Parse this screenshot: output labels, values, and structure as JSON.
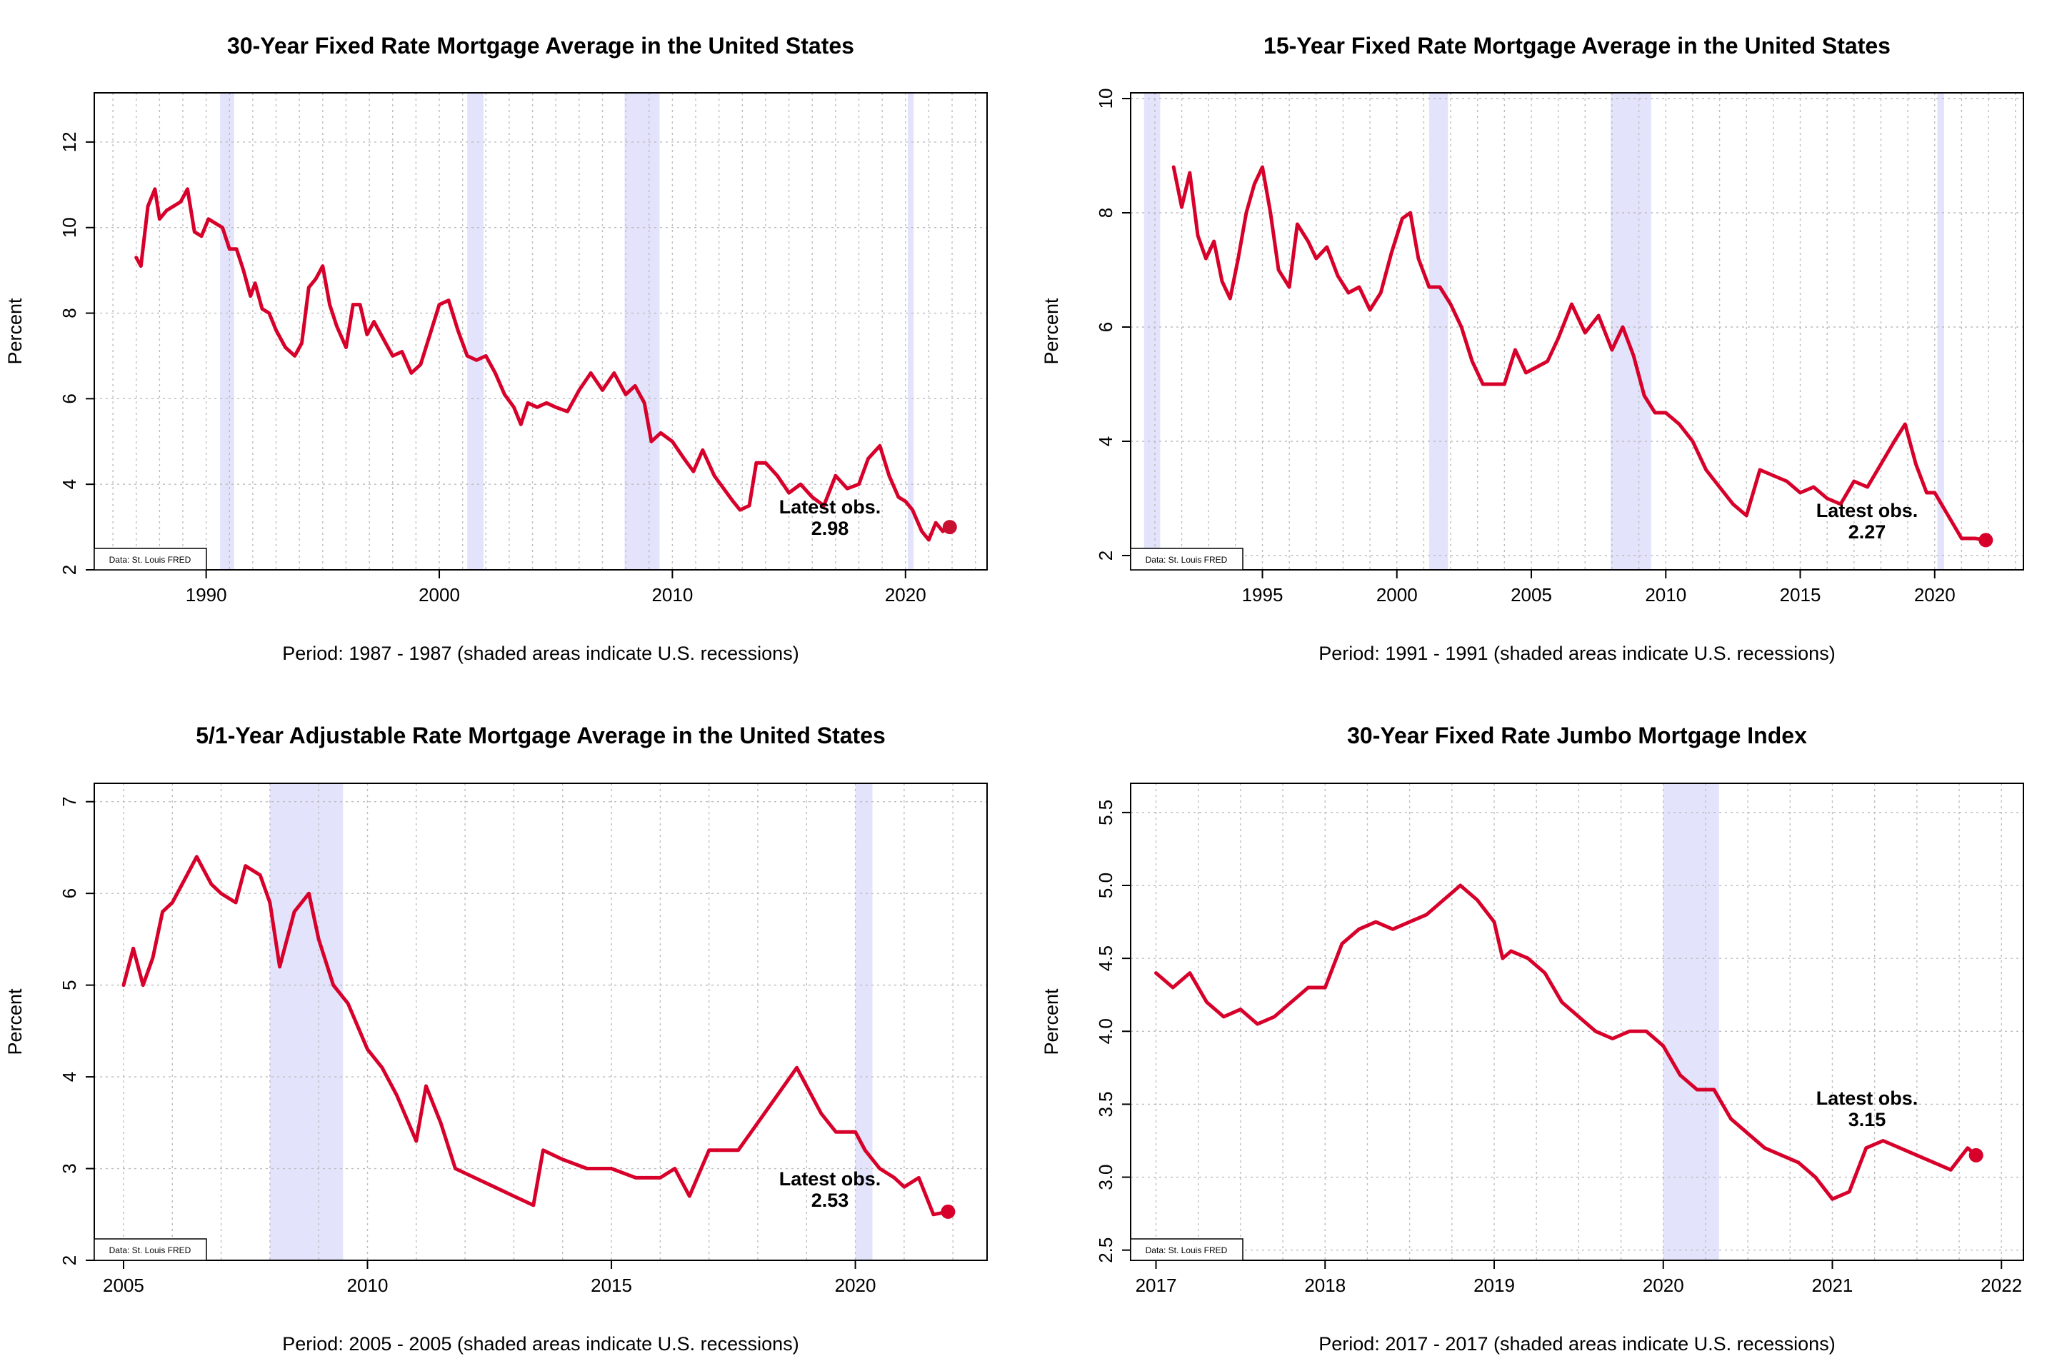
{
  "chart_data": [
    {
      "type": "line",
      "title": "30-Year Fixed Rate Mortgage Average in the United States",
      "xlabel": "Period: 1987 - 1987 (shaded areas indicate U.S. recessions)",
      "ylabel": "Percent",
      "xlim": [
        1985.2,
        2023.5
      ],
      "ylim": [
        2,
        13.15
      ],
      "xticks": [
        1990,
        2000,
        2010,
        2020
      ],
      "xtick_labels": [
        "1990",
        "2000",
        "2010",
        "2020"
      ],
      "yticks": [
        2,
        4,
        6,
        8,
        10,
        12
      ],
      "ytick_labels": [
        "2",
        "4",
        "6",
        "8",
        "10",
        "12"
      ],
      "grid": true,
      "recessions": [
        [
          1990.6,
          1991.2
        ],
        [
          2001.2,
          2001.9
        ],
        [
          2007.95,
          2009.45
        ],
        [
          2020.1,
          2020.35
        ]
      ],
      "series": [
        {
          "color": "#d7002a",
          "x": [
            1987.0,
            1987.2,
            1987.5,
            1987.8,
            1988.0,
            1988.3,
            1988.6,
            1988.9,
            1989.2,
            1989.5,
            1989.8,
            1990.1,
            1990.4,
            1990.7,
            1991.0,
            1991.3,
            1991.6,
            1991.9,
            1992.1,
            1992.4,
            1992.7,
            1993.0,
            1993.4,
            1993.8,
            1994.1,
            1994.4,
            1994.7,
            1995.0,
            1995.3,
            1995.6,
            1996.0,
            1996.3,
            1996.6,
            1996.9,
            1997.2,
            1997.6,
            1998.0,
            1998.4,
            1998.8,
            1999.2,
            1999.6,
            2000.0,
            2000.4,
            2000.8,
            2001.2,
            2001.6,
            2002.0,
            2002.4,
            2002.8,
            2003.2,
            2003.5,
            2003.8,
            2004.2,
            2004.6,
            2005.0,
            2005.5,
            2006.0,
            2006.5,
            2007.0,
            2007.5,
            2008.0,
            2008.4,
            2008.8,
            2009.1,
            2009.5,
            2010.0,
            2010.5,
            2010.9,
            2011.3,
            2011.8,
            2012.2,
            2012.6,
            2012.9,
            2013.3,
            2013.6,
            2014.0,
            2014.5,
            2015.0,
            2015.5,
            2016.0,
            2016.5,
            2017.0,
            2017.5,
            2018.0,
            2018.4,
            2018.9,
            2019.3,
            2019.7,
            2020.0,
            2020.3,
            2020.7,
            2021.0,
            2021.3,
            2021.6,
            2021.9
          ],
          "values": [
            9.3,
            9.1,
            10.5,
            10.9,
            10.2,
            10.4,
            10.5,
            10.6,
            10.9,
            9.9,
            9.8,
            10.2,
            10.1,
            10.0,
            9.5,
            9.5,
            9.0,
            8.4,
            8.7,
            8.1,
            8.0,
            7.6,
            7.2,
            7.0,
            7.3,
            8.6,
            8.8,
            9.1,
            8.2,
            7.7,
            7.2,
            8.2,
            8.2,
            7.5,
            7.8,
            7.4,
            7.0,
            7.1,
            6.6,
            6.8,
            7.5,
            8.2,
            8.3,
            7.6,
            7.0,
            6.9,
            7.0,
            6.6,
            6.1,
            5.8,
            5.4,
            5.9,
            5.8,
            5.9,
            5.8,
            5.7,
            6.2,
            6.6,
            6.2,
            6.6,
            6.1,
            6.3,
            5.9,
            5.0,
            5.2,
            5.0,
            4.6,
            4.3,
            4.8,
            4.2,
            3.9,
            3.6,
            3.4,
            3.5,
            4.5,
            4.5,
            4.2,
            3.8,
            4.0,
            3.7,
            3.5,
            4.2,
            3.9,
            4.0,
            4.6,
            4.9,
            4.2,
            3.7,
            3.6,
            3.4,
            2.9,
            2.7,
            3.1,
            2.9,
            3.0
          ],
          "latest_label": "Latest obs.",
          "latest_value": "2.98"
        }
      ],
      "source": "Data: St. Louis FRED"
    },
    {
      "type": "line",
      "title": "15-Year Fixed Rate Mortgage Average in the United States",
      "xlabel": "Period: 1991 - 1991 (shaded areas indicate U.S. recessions)",
      "ylabel": "Percent",
      "xlim": [
        1990.1,
        2023.3
      ],
      "ylim": [
        1.75,
        10.1
      ],
      "xticks": [
        1995,
        2000,
        2005,
        2010,
        2015,
        2020
      ],
      "xtick_labels": [
        "1995",
        "2000",
        "2005",
        "2010",
        "2015",
        "2020"
      ],
      "yticks": [
        2,
        4,
        6,
        8,
        10
      ],
      "ytick_labels": [
        "2",
        "4",
        "6",
        "8",
        "10"
      ],
      "grid": true,
      "recessions": [
        [
          1990.6,
          1991.2
        ],
        [
          2001.2,
          2001.9
        ],
        [
          2007.95,
          2009.45
        ],
        [
          2020.1,
          2020.35
        ]
      ],
      "series": [
        {
          "color": "#d7002a",
          "x": [
            1991.7,
            1992.0,
            1992.3,
            1992.6,
            1992.9,
            1993.2,
            1993.5,
            1993.8,
            1994.1,
            1994.4,
            1994.7,
            1995.0,
            1995.3,
            1995.6,
            1996.0,
            1996.3,
            1996.7,
            1997.0,
            1997.4,
            1997.8,
            1998.2,
            1998.6,
            1999.0,
            1999.4,
            1999.8,
            2000.2,
            2000.5,
            2000.8,
            2001.2,
            2001.6,
            2002.0,
            2002.4,
            2002.8,
            2003.2,
            2003.6,
            2004.0,
            2004.4,
            2004.8,
            2005.2,
            2005.6,
            2006.0,
            2006.5,
            2007.0,
            2007.5,
            2008.0,
            2008.4,
            2008.8,
            2009.2,
            2009.6,
            2010.0,
            2010.5,
            2011.0,
            2011.5,
            2012.0,
            2012.5,
            2013.0,
            2013.5,
            2014.0,
            2014.5,
            2015.0,
            2015.5,
            2016.0,
            2016.5,
            2017.0,
            2017.5,
            2018.0,
            2018.5,
            2018.9,
            2019.3,
            2019.7,
            2020.0,
            2020.5,
            2021.0,
            2021.5,
            2021.9
          ],
          "values": [
            8.8,
            8.1,
            8.7,
            7.6,
            7.2,
            7.5,
            6.8,
            6.5,
            7.2,
            8.0,
            8.5,
            8.8,
            8.0,
            7.0,
            6.7,
            7.8,
            7.5,
            7.2,
            7.4,
            6.9,
            6.6,
            6.7,
            6.3,
            6.6,
            7.3,
            7.9,
            8.0,
            7.2,
            6.7,
            6.7,
            6.4,
            6.0,
            5.4,
            5.0,
            5.0,
            5.0,
            5.6,
            5.2,
            5.3,
            5.4,
            5.8,
            6.4,
            5.9,
            6.2,
            5.6,
            6.0,
            5.5,
            4.8,
            4.5,
            4.5,
            4.3,
            4.0,
            3.5,
            3.2,
            2.9,
            2.7,
            3.5,
            3.4,
            3.3,
            3.1,
            3.2,
            3.0,
            2.9,
            3.3,
            3.2,
            3.6,
            4.0,
            4.3,
            3.6,
            3.1,
            3.1,
            2.7,
            2.3,
            2.3,
            2.27
          ],
          "latest_label": "Latest obs.",
          "latest_value": "2.27"
        }
      ],
      "source": "Data: St. Louis FRED"
    },
    {
      "type": "line",
      "title": "5/1-Year Adjustable Rate Mortgage Average in the United States",
      "xlabel": "Period: 2005 - 2005 (shaded areas indicate U.S. recessions)",
      "ylabel": "Percent",
      "xlim": [
        2004.4,
        2022.7
      ],
      "ylim": [
        2,
        7.2
      ],
      "xticks": [
        2005,
        2010,
        2015,
        2020
      ],
      "xtick_labels": [
        "2005",
        "2010",
        "2015",
        "2020"
      ],
      "yticks": [
        2,
        3,
        4,
        5,
        6,
        7
      ],
      "ytick_labels": [
        "2",
        "3",
        "4",
        "5",
        "6",
        "7"
      ],
      "grid": true,
      "recessions": [
        [
          2008.0,
          2009.5
        ],
        [
          2020.0,
          2020.35
        ]
      ],
      "series": [
        {
          "color": "#d7002a",
          "x": [
            2005.0,
            2005.2,
            2005.4,
            2005.6,
            2005.8,
            2006.0,
            2006.2,
            2006.5,
            2006.8,
            2007.0,
            2007.3,
            2007.5,
            2007.8,
            2008.0,
            2008.2,
            2008.5,
            2008.8,
            2009.0,
            2009.3,
            2009.6,
            2010.0,
            2010.3,
            2010.6,
            2011.0,
            2011.2,
            2011.5,
            2011.8,
            2012.2,
            2012.6,
            2013.0,
            2013.4,
            2013.6,
            2014.0,
            2014.5,
            2015.0,
            2015.5,
            2016.0,
            2016.3,
            2016.6,
            2017.0,
            2017.3,
            2017.6,
            2018.0,
            2018.4,
            2018.8,
            2019.0,
            2019.3,
            2019.6,
            2020.0,
            2020.2,
            2020.5,
            2020.8,
            2021.0,
            2021.3,
            2021.6,
            2021.9
          ],
          "values": [
            5.0,
            5.4,
            5.0,
            5.3,
            5.8,
            5.9,
            6.1,
            6.4,
            6.1,
            6.0,
            5.9,
            6.3,
            6.2,
            5.9,
            5.2,
            5.8,
            6.0,
            5.5,
            5.0,
            4.8,
            4.3,
            4.1,
            3.8,
            3.3,
            3.9,
            3.5,
            3.0,
            2.9,
            2.8,
            2.7,
            2.6,
            3.2,
            3.1,
            3.0,
            3.0,
            2.9,
            2.9,
            3.0,
            2.7,
            3.2,
            3.2,
            3.2,
            3.5,
            3.8,
            4.1,
            3.9,
            3.6,
            3.4,
            3.4,
            3.2,
            3.0,
            2.9,
            2.8,
            2.9,
            2.5,
            2.53
          ],
          "latest_label": "Latest obs.",
          "latest_value": "2.53"
        }
      ],
      "source": "Data: St. Louis FRED"
    },
    {
      "type": "line",
      "title": "30-Year Fixed Rate Jumbo Mortgage Index",
      "xlabel": "Period: 2017 - 2017 (shaded areas indicate U.S. recessions)",
      "ylabel": "Percent",
      "xlim": [
        2016.85,
        2022.13
      ],
      "ylim": [
        2.43,
        5.7
      ],
      "xticks": [
        2017,
        2018,
        2019,
        2020,
        2021,
        2022
      ],
      "xtick_labels": [
        "2017",
        "2018",
        "2019",
        "2020",
        "2021",
        "2022"
      ],
      "yticks": [
        2.5,
        3.0,
        3.5,
        4.0,
        4.5,
        5.0,
        5.5
      ],
      "ytick_labels": [
        "2.5",
        "3.0",
        "3.5",
        "4.0",
        "4.5",
        "5.0",
        "5.5"
      ],
      "grid": true,
      "recessions": [
        [
          2020.0,
          2020.33
        ]
      ],
      "series": [
        {
          "color": "#d7002a",
          "x": [
            2017.0,
            2017.1,
            2017.2,
            2017.3,
            2017.4,
            2017.5,
            2017.6,
            2017.7,
            2017.8,
            2017.9,
            2018.0,
            2018.1,
            2018.2,
            2018.3,
            2018.4,
            2018.5,
            2018.6,
            2018.7,
            2018.8,
            2018.9,
            2019.0,
            2019.05,
            2019.1,
            2019.2,
            2019.3,
            2019.4,
            2019.5,
            2019.6,
            2019.7,
            2019.8,
            2019.9,
            2020.0,
            2020.1,
            2020.2,
            2020.3,
            2020.4,
            2020.5,
            2020.6,
            2020.7,
            2020.8,
            2020.9,
            2021.0,
            2021.1,
            2021.2,
            2021.3,
            2021.4,
            2021.5,
            2021.6,
            2021.7,
            2021.8,
            2021.85
          ],
          "values": [
            4.4,
            4.3,
            4.4,
            4.2,
            4.1,
            4.15,
            4.05,
            4.1,
            4.2,
            4.3,
            4.3,
            4.6,
            4.7,
            4.75,
            4.7,
            4.75,
            4.8,
            4.9,
            5.0,
            4.9,
            4.75,
            4.5,
            4.55,
            4.5,
            4.4,
            4.2,
            4.1,
            4.0,
            3.95,
            4.0,
            4.0,
            3.9,
            3.7,
            3.6,
            3.6,
            3.4,
            3.3,
            3.2,
            3.15,
            3.1,
            3.0,
            2.85,
            2.9,
            3.2,
            3.25,
            3.2,
            3.15,
            3.1,
            3.05,
            3.2,
            3.15
          ],
          "latest_label": "Latest obs.",
          "latest_value": "3.15"
        }
      ],
      "source": "Data: St. Louis FRED"
    }
  ]
}
